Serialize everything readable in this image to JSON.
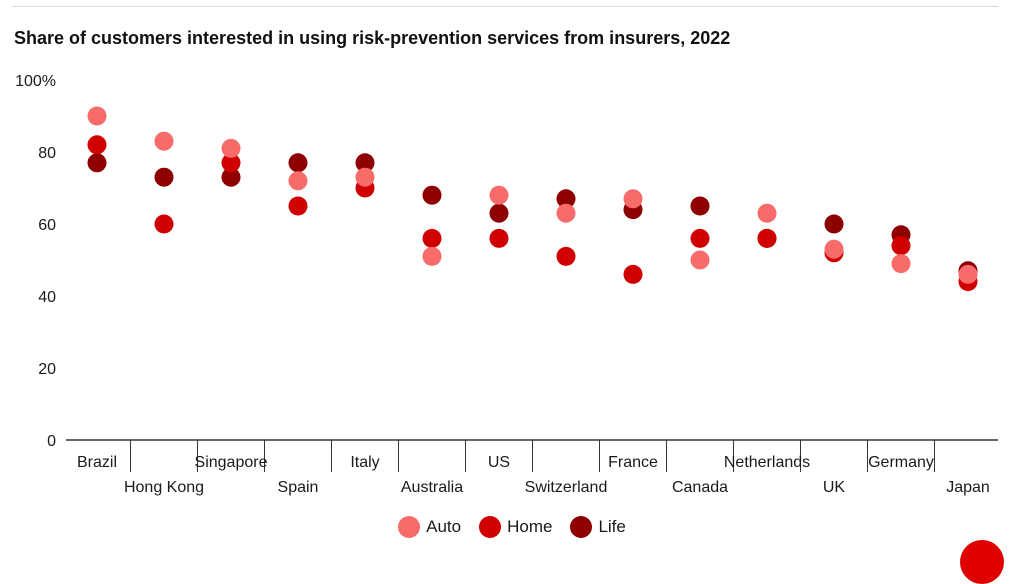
{
  "title": "Share of customers interested in using risk-prevention services from insurers, 2022",
  "colors": {
    "Auto": "#f76b6b",
    "Home": "#d00000",
    "Life": "#8e0000",
    "axis": "#333333",
    "accent": "#e00000"
  },
  "chart_data": {
    "type": "scatter",
    "title": "Share of customers interested in using risk-prevention services from insurers, 2022",
    "xlabel": "",
    "ylabel": "",
    "ylim": [
      0,
      100
    ],
    "yticks": [
      "0",
      "20",
      "40",
      "60",
      "80",
      "100%"
    ],
    "ytick_values": [
      0,
      20,
      40,
      60,
      80,
      100
    ],
    "grid": false,
    "legend_position": "bottom",
    "categories": [
      "Brazil",
      "Hong Kong",
      "Singapore",
      "Spain",
      "Italy",
      "Australia",
      "US",
      "Switzerland",
      "France",
      "Canada",
      "Netherlands",
      "UK",
      "Germany",
      "Japan"
    ],
    "series": [
      {
        "name": "Life",
        "color": "#8e0000",
        "values": [
          77,
          73,
          73,
          77,
          77,
          68,
          63,
          67,
          64,
          65,
          56,
          60,
          57,
          47
        ]
      },
      {
        "name": "Home",
        "color": "#d00000",
        "values": [
          82,
          60,
          77,
          65,
          70,
          56,
          56,
          51,
          46,
          56,
          56,
          52,
          54,
          44
        ]
      },
      {
        "name": "Auto",
        "color": "#f76b6b",
        "values": [
          90,
          83,
          81,
          72,
          73,
          51,
          68,
          63,
          67,
          50,
          63,
          53,
          49,
          46
        ]
      }
    ]
  },
  "legend": [
    {
      "label": "Auto",
      "color": "#f76b6b"
    },
    {
      "label": "Home",
      "color": "#d00000"
    },
    {
      "label": "Life",
      "color": "#8e0000"
    }
  ]
}
